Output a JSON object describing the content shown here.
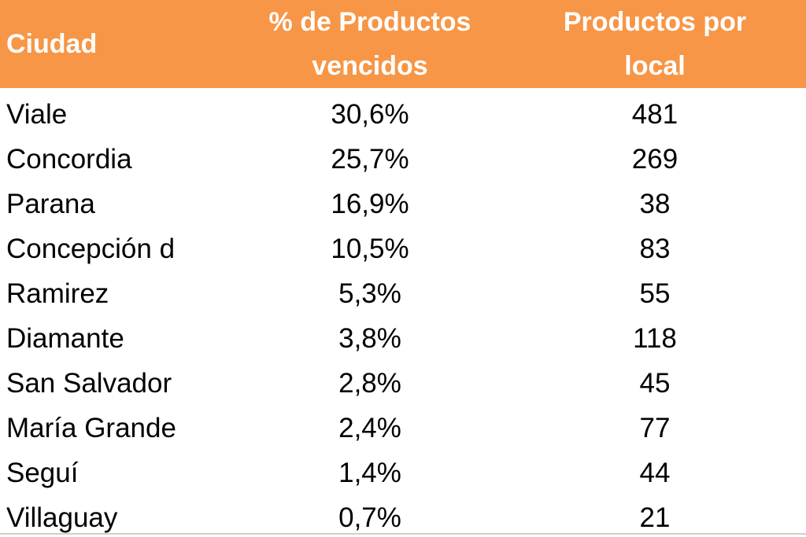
{
  "header": {
    "city": "Ciudad",
    "pct_line1": "% de Productos",
    "pct_line2": "vencidos",
    "prod_line1": "Productos por",
    "prod_line2": "local"
  },
  "colors": {
    "header_bg": "#f79646",
    "header_text": "#ffffff",
    "body_text": "#000000"
  },
  "rows": [
    {
      "city": "Viale",
      "pct": "30,6%",
      "products": "481"
    },
    {
      "city": "Concordia",
      "pct": "25,7%",
      "products": "269"
    },
    {
      "city": "Parana",
      "pct": "16,9%",
      "products": "38"
    },
    {
      "city": "Concepción d",
      "pct": "10,5%",
      "products": "83"
    },
    {
      "city": "Ramirez",
      "pct": "5,3%",
      "products": "55"
    },
    {
      "city": "Diamante",
      "pct": "3,8%",
      "products": "118"
    },
    {
      "city": "San Salvador",
      "pct": "2,8%",
      "products": "45"
    },
    {
      "city": "María Grande",
      "pct": "2,4%",
      "products": "77"
    },
    {
      "city": "Seguí",
      "pct": "1,4%",
      "products": "44"
    },
    {
      "city": "Villaguay",
      "pct": "0,7%",
      "products": "21"
    }
  ]
}
